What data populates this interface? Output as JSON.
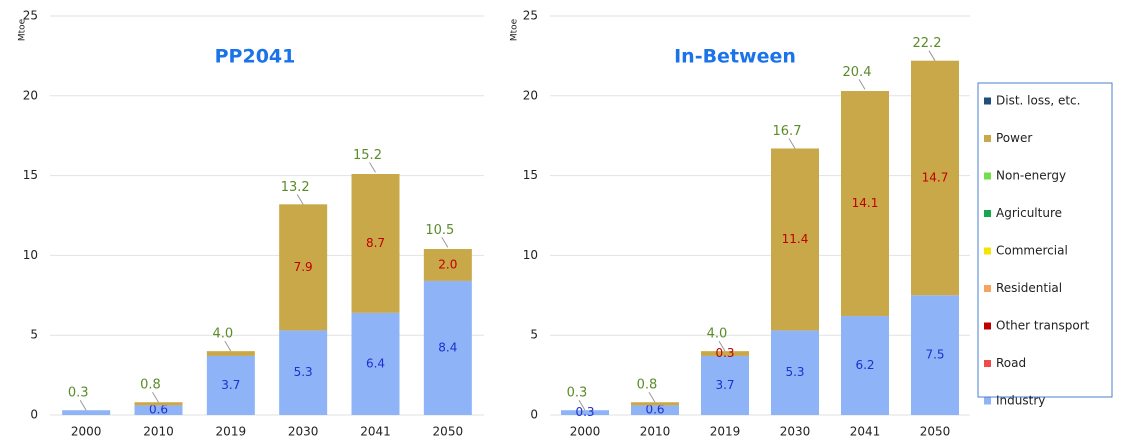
{
  "chart_data": [
    {
      "type": "bar",
      "stacked": true,
      "title": "PP2041",
      "ylabel": "Mtoe",
      "categories": [
        "2000",
        "2010",
        "2019",
        "2030",
        "2041",
        "2050"
      ],
      "ylim": [
        0,
        25
      ],
      "yticks": [
        0,
        5,
        10,
        15,
        20,
        25
      ],
      "grid": true,
      "totals": [
        0.3,
        0.8,
        4.0,
        13.2,
        15.2,
        10.5
      ],
      "total_labels": [
        "0.3",
        "0.8",
        "4.0",
        "13.2",
        "15.2",
        "10.5"
      ],
      "series": [
        {
          "color": "#8eb4f7",
          "values": [
            0.3,
            0.6,
            3.7,
            5.3,
            6.4,
            8.4
          ],
          "value_labels": [
            null,
            "0.6",
            "3.7",
            "5.3",
            "6.4",
            "8.4"
          ],
          "label_color": "#1f2fd0"
        },
        {
          "color": "#f04a4a",
          "values": [
            0,
            0,
            0,
            0,
            0,
            0
          ]
        },
        {
          "color": "#c00000",
          "values": [
            0,
            0,
            0,
            0,
            0,
            0
          ]
        },
        {
          "color": "#f7a35c",
          "values": [
            0,
            0,
            0,
            0,
            0,
            0
          ]
        },
        {
          "color": "#f5e400",
          "values": [
            0,
            0,
            0,
            0,
            0,
            0
          ]
        },
        {
          "color": "#1aa64a",
          "values": [
            0,
            0,
            0,
            0,
            0,
            0
          ]
        },
        {
          "color": "#6fe04a",
          "values": [
            0,
            0,
            0,
            0,
            0,
            0
          ]
        },
        {
          "color": "#c9a84a",
          "values": [
            0,
            0.2,
            0.3,
            7.9,
            8.7,
            2.0
          ],
          "value_labels": [
            null,
            null,
            null,
            "7.9",
            "8.7",
            "2.0"
          ],
          "label_color": "#c00000"
        },
        {
          "color": "#1f4e79",
          "values": [
            0,
            0,
            0,
            0,
            0,
            0
          ]
        }
      ]
    },
    {
      "type": "bar",
      "stacked": true,
      "title": "In-Between",
      "ylabel": "Mtoe",
      "categories": [
        "2000",
        "2010",
        "2019",
        "2030",
        "2041",
        "2050"
      ],
      "ylim": [
        0,
        25
      ],
      "yticks": [
        0,
        5,
        10,
        15,
        20,
        25
      ],
      "grid": true,
      "totals": [
        0.3,
        0.8,
        4.0,
        16.7,
        20.4,
        22.2
      ],
      "total_labels": [
        "0.3",
        "0.8",
        "4.0",
        "16.7",
        "20.4",
        "22.2"
      ],
      "series": [
        {
          "name": "Industry",
          "color": "#8eb4f7",
          "values": [
            0.3,
            0.6,
            3.7,
            5.3,
            6.2,
            7.5
          ],
          "value_labels": [
            "0.3",
            "0.6",
            "3.7",
            "5.3",
            "6.2",
            "7.5"
          ],
          "label_color": "#1f2fd0"
        },
        {
          "name": "Road",
          "color": "#f04a4a",
          "values": [
            0,
            0,
            0,
            0,
            0,
            0
          ]
        },
        {
          "name": "Other transport",
          "color": "#c00000",
          "values": [
            0,
            0,
            0,
            0,
            0,
            0
          ]
        },
        {
          "name": "Residential",
          "color": "#f7a35c",
          "values": [
            0,
            0,
            0,
            0,
            0,
            0
          ]
        },
        {
          "name": "Commercial",
          "color": "#f5e400",
          "values": [
            0,
            0,
            0,
            0,
            0,
            0
          ]
        },
        {
          "name": "Agriculture",
          "color": "#1aa64a",
          "values": [
            0,
            0,
            0,
            0,
            0,
            0
          ]
        },
        {
          "name": "Non-energy",
          "color": "#6fe04a",
          "values": [
            0,
            0,
            0,
            0,
            0,
            0
          ]
        },
        {
          "name": "Power",
          "color": "#c9a84a",
          "values": [
            0,
            0.2,
            0.3,
            11.4,
            14.1,
            14.7
          ],
          "value_labels": [
            null,
            null,
            "0.3",
            "11.4",
            "14.1",
            "14.7"
          ],
          "label_color": "#c00000"
        },
        {
          "name": "Dist. loss, etc.",
          "color": "#1f4e79",
          "values": [
            0,
            0,
            0,
            0,
            0,
            0
          ]
        }
      ]
    }
  ]
}
